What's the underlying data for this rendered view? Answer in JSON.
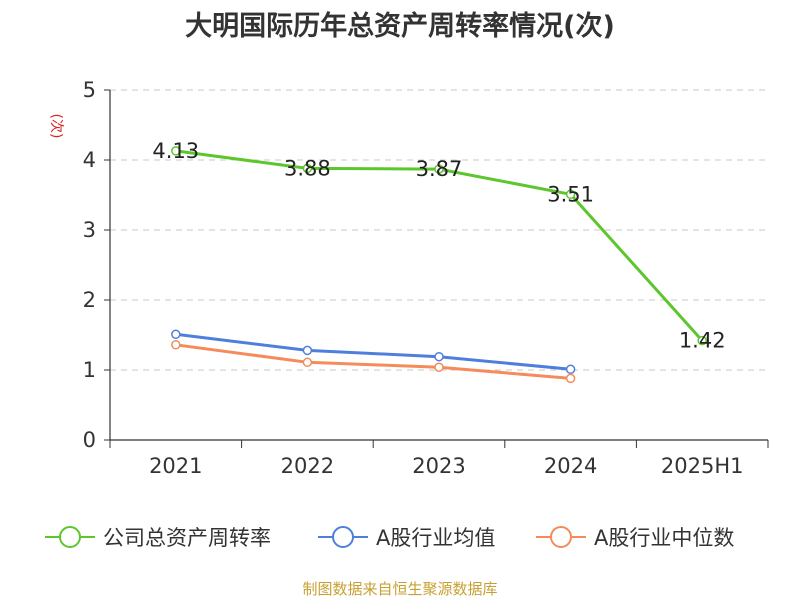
{
  "chart_data": {
    "type": "line",
    "title": "大明国际历年总资产周转率情况(次)",
    "ylabel": "(次)",
    "xlabel": "",
    "categories": [
      "2021",
      "2022",
      "2023",
      "2024",
      "2025H1"
    ],
    "ylim": [
      0,
      5
    ],
    "yticks": [
      "0",
      "1",
      "2",
      "3",
      "4",
      "5"
    ],
    "grid": true,
    "legend_position": "bottom",
    "series": [
      {
        "name": "公司总资产周转率",
        "color": "#5dc62d",
        "values": [
          4.13,
          3.88,
          3.87,
          3.51,
          1.42
        ],
        "labels": [
          "4.13",
          "3.88",
          "3.87",
          "3.51",
          "1.42"
        ]
      },
      {
        "name": "A股行业均值",
        "color": "#4f7fdc",
        "values": [
          1.51,
          1.28,
          1.19,
          1.01,
          null
        ]
      },
      {
        "name": "A股行业中位数",
        "color": "#f58b5a",
        "values": [
          1.36,
          1.11,
          1.04,
          0.88,
          null
        ]
      }
    ]
  },
  "source": "制图数据来自恒生聚源数据库"
}
